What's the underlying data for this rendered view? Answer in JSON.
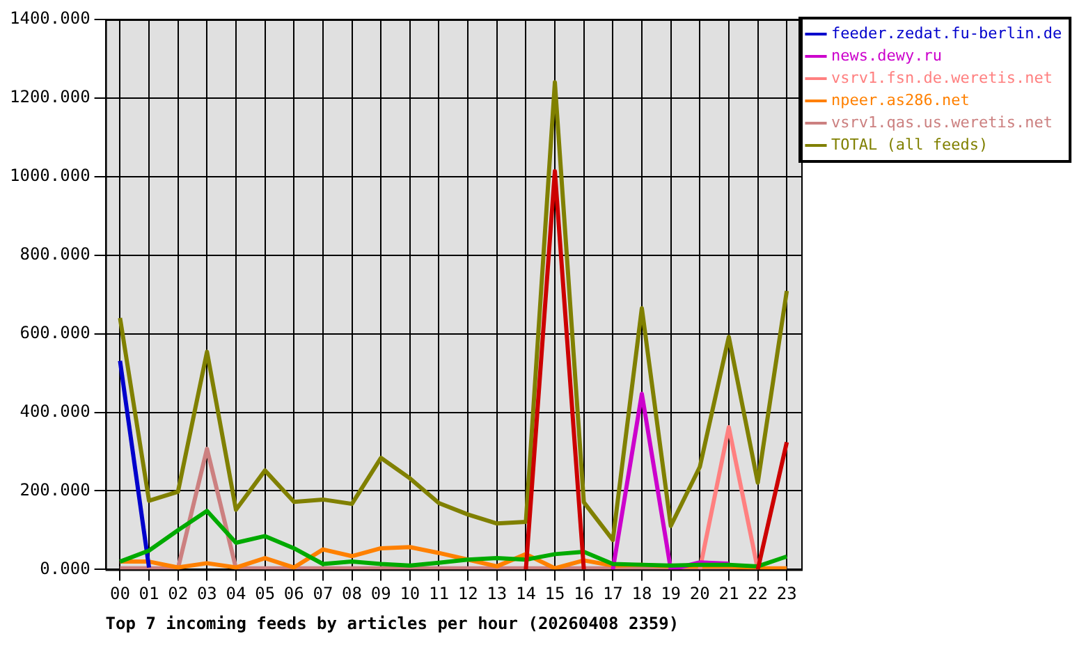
{
  "chart_data": {
    "type": "line",
    "xlabel": "Top 7 incoming feeds by articles per hour (20260408 2359)",
    "categories": [
      "00",
      "01",
      "02",
      "03",
      "04",
      "05",
      "06",
      "07",
      "08",
      "09",
      "10",
      "11",
      "12",
      "13",
      "14",
      "15",
      "16",
      "17",
      "18",
      "19",
      "20",
      "21",
      "22",
      "23"
    ],
    "ylim": [
      0,
      1400
    ],
    "yticks": [
      {
        "value": 0,
        "label": "0.000"
      },
      {
        "value": 200,
        "label": "200.000"
      },
      {
        "value": 400,
        "label": "400.000"
      },
      {
        "value": 600,
        "label": "600.000"
      },
      {
        "value": 800,
        "label": "800.000"
      },
      {
        "value": 1000,
        "label": "1000.000"
      },
      {
        "value": 1200,
        "label": "1200.000"
      },
      {
        "value": 1400,
        "label": "1400.000"
      }
    ],
    "grid": true,
    "legend": "top right",
    "marker": "none",
    "line_style": "solid",
    "series": [
      {
        "color": "#cc0000",
        "values": [
          null,
          null,
          null,
          null,
          null,
          null,
          null,
          null,
          null,
          null,
          null,
          null,
          null,
          null,
          0,
          1014,
          0,
          null,
          null,
          null,
          null,
          null,
          0,
          324
        ]
      },
      {
        "color": "#00aa00",
        "values": [
          20,
          48,
          100,
          149,
          68,
          85,
          54,
          14,
          20,
          14,
          10,
          17,
          25,
          29,
          25,
          39,
          45,
          14,
          12,
          10,
          12,
          12,
          8,
          33
        ]
      },
      {
        "name": "feeder.zedat.fu-berlin.de",
        "color": "#0000cc",
        "values": [
          531,
          5,
          null,
          null,
          null,
          null,
          null,
          null,
          null,
          null,
          null,
          null,
          null,
          null,
          null,
          null,
          null,
          null,
          null,
          null,
          null,
          null,
          null,
          null
        ]
      },
      {
        "name": "news.dewy.ru",
        "color": "#cc00cc",
        "values": [
          null,
          null,
          null,
          null,
          null,
          null,
          null,
          null,
          null,
          null,
          null,
          null,
          null,
          null,
          null,
          null,
          null,
          0,
          447,
          0,
          18,
          15,
          null,
          null
        ]
      },
      {
        "name": "vsrv1.fsn.de.weretis.net",
        "color": "#ff8080",
        "values": [
          null,
          null,
          null,
          null,
          null,
          null,
          null,
          null,
          null,
          null,
          null,
          null,
          null,
          null,
          null,
          null,
          null,
          null,
          null,
          null,
          0,
          362,
          0,
          null
        ]
      },
      {
        "name": "npeer.as286.net",
        "color": "#ff8000",
        "values": [
          20,
          20,
          5,
          16,
          5,
          29,
          5,
          51,
          34,
          54,
          57,
          42,
          25,
          8,
          39,
          3,
          23,
          10,
          12,
          8,
          8,
          8,
          3,
          3
        ]
      },
      {
        "name": "vsrv1.qas.us.weretis.net",
        "color": "#cc8080",
        "values": [
          3,
          3,
          3,
          307,
          3,
          3,
          3,
          3,
          3,
          3,
          3,
          3,
          3,
          3,
          3,
          3,
          3,
          3,
          3,
          3,
          3,
          3,
          3,
          null
        ]
      },
      {
        "name": "TOTAL (all feeds)",
        "color": "#808000",
        "values": [
          640,
          175,
          198,
          554,
          152,
          252,
          172,
          178,
          167,
          284,
          232,
          169,
          140,
          117,
          121,
          1240,
          171,
          75,
          665,
          111,
          261,
          592,
          221,
          709
        ]
      }
    ]
  }
}
